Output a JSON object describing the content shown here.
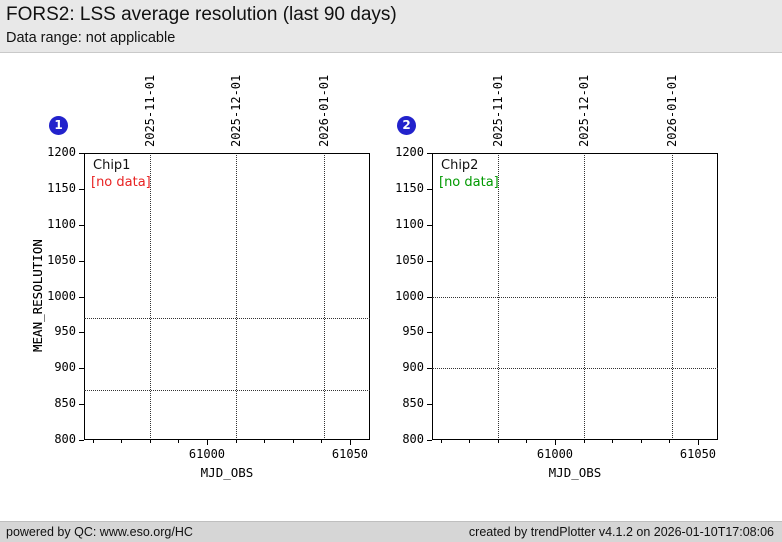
{
  "header": {
    "title": "FORS2: LSS average resolution (last 90 days)",
    "subtitle": "Data range: not applicable"
  },
  "footer": {
    "left": "powered by QC: www.eso.org/HC",
    "right": "created by trendPlotter v4.1.2 on 2026-01-10T17:08:06"
  },
  "colors": {
    "badge_blue": "#2222cc",
    "no_data_red": "#e82222",
    "no_data_green": "#009900",
    "grid_line": "#333333",
    "header_bg": "#e8e8e8",
    "footer_bg": "#d6d6d6"
  },
  "chart_data": [
    {
      "type": "scatter",
      "panel_badge": "1",
      "title": "Chip1",
      "annotation": "[no data]",
      "annotation_color": "#e82222",
      "series": [],
      "xlabel": "MJD_OBS",
      "ylabel": "MEAN_RESOLUTION",
      "xlim": [
        60957,
        61057
      ],
      "ylim": [
        800,
        1200
      ],
      "ytick_start": 800,
      "ytick_step": 50,
      "xticks_major": [
        61000,
        61050
      ],
      "xtick_minor_step": 10,
      "grid": "date-gridlines-and-reference-lines",
      "date_gridlines": [
        {
          "label": "2025-11-01",
          "x": 60980
        },
        {
          "label": "2025-12-01",
          "x": 61010
        },
        {
          "label": "2026-01-01",
          "x": 61041
        }
      ],
      "reference_lines_y": [
        970,
        870
      ]
    },
    {
      "type": "scatter",
      "panel_badge": "2",
      "title": "Chip2",
      "annotation": "[no data]",
      "annotation_color": "#009900",
      "series": [],
      "xlabel": "MJD_OBS",
      "ylabel": "MEAN_RESOLUTION",
      "xlim": [
        60957,
        61057
      ],
      "ylim": [
        800,
        1200
      ],
      "ytick_start": 800,
      "ytick_step": 50,
      "xticks_major": [
        61000,
        61050
      ],
      "xtick_minor_step": 10,
      "grid": "date-gridlines-and-reference-lines",
      "date_gridlines": [
        {
          "label": "2025-11-01",
          "x": 60980
        },
        {
          "label": "2025-12-01",
          "x": 61010
        },
        {
          "label": "2026-01-01",
          "x": 61041
        }
      ],
      "reference_lines_y": [
        1000,
        900
      ]
    }
  ]
}
